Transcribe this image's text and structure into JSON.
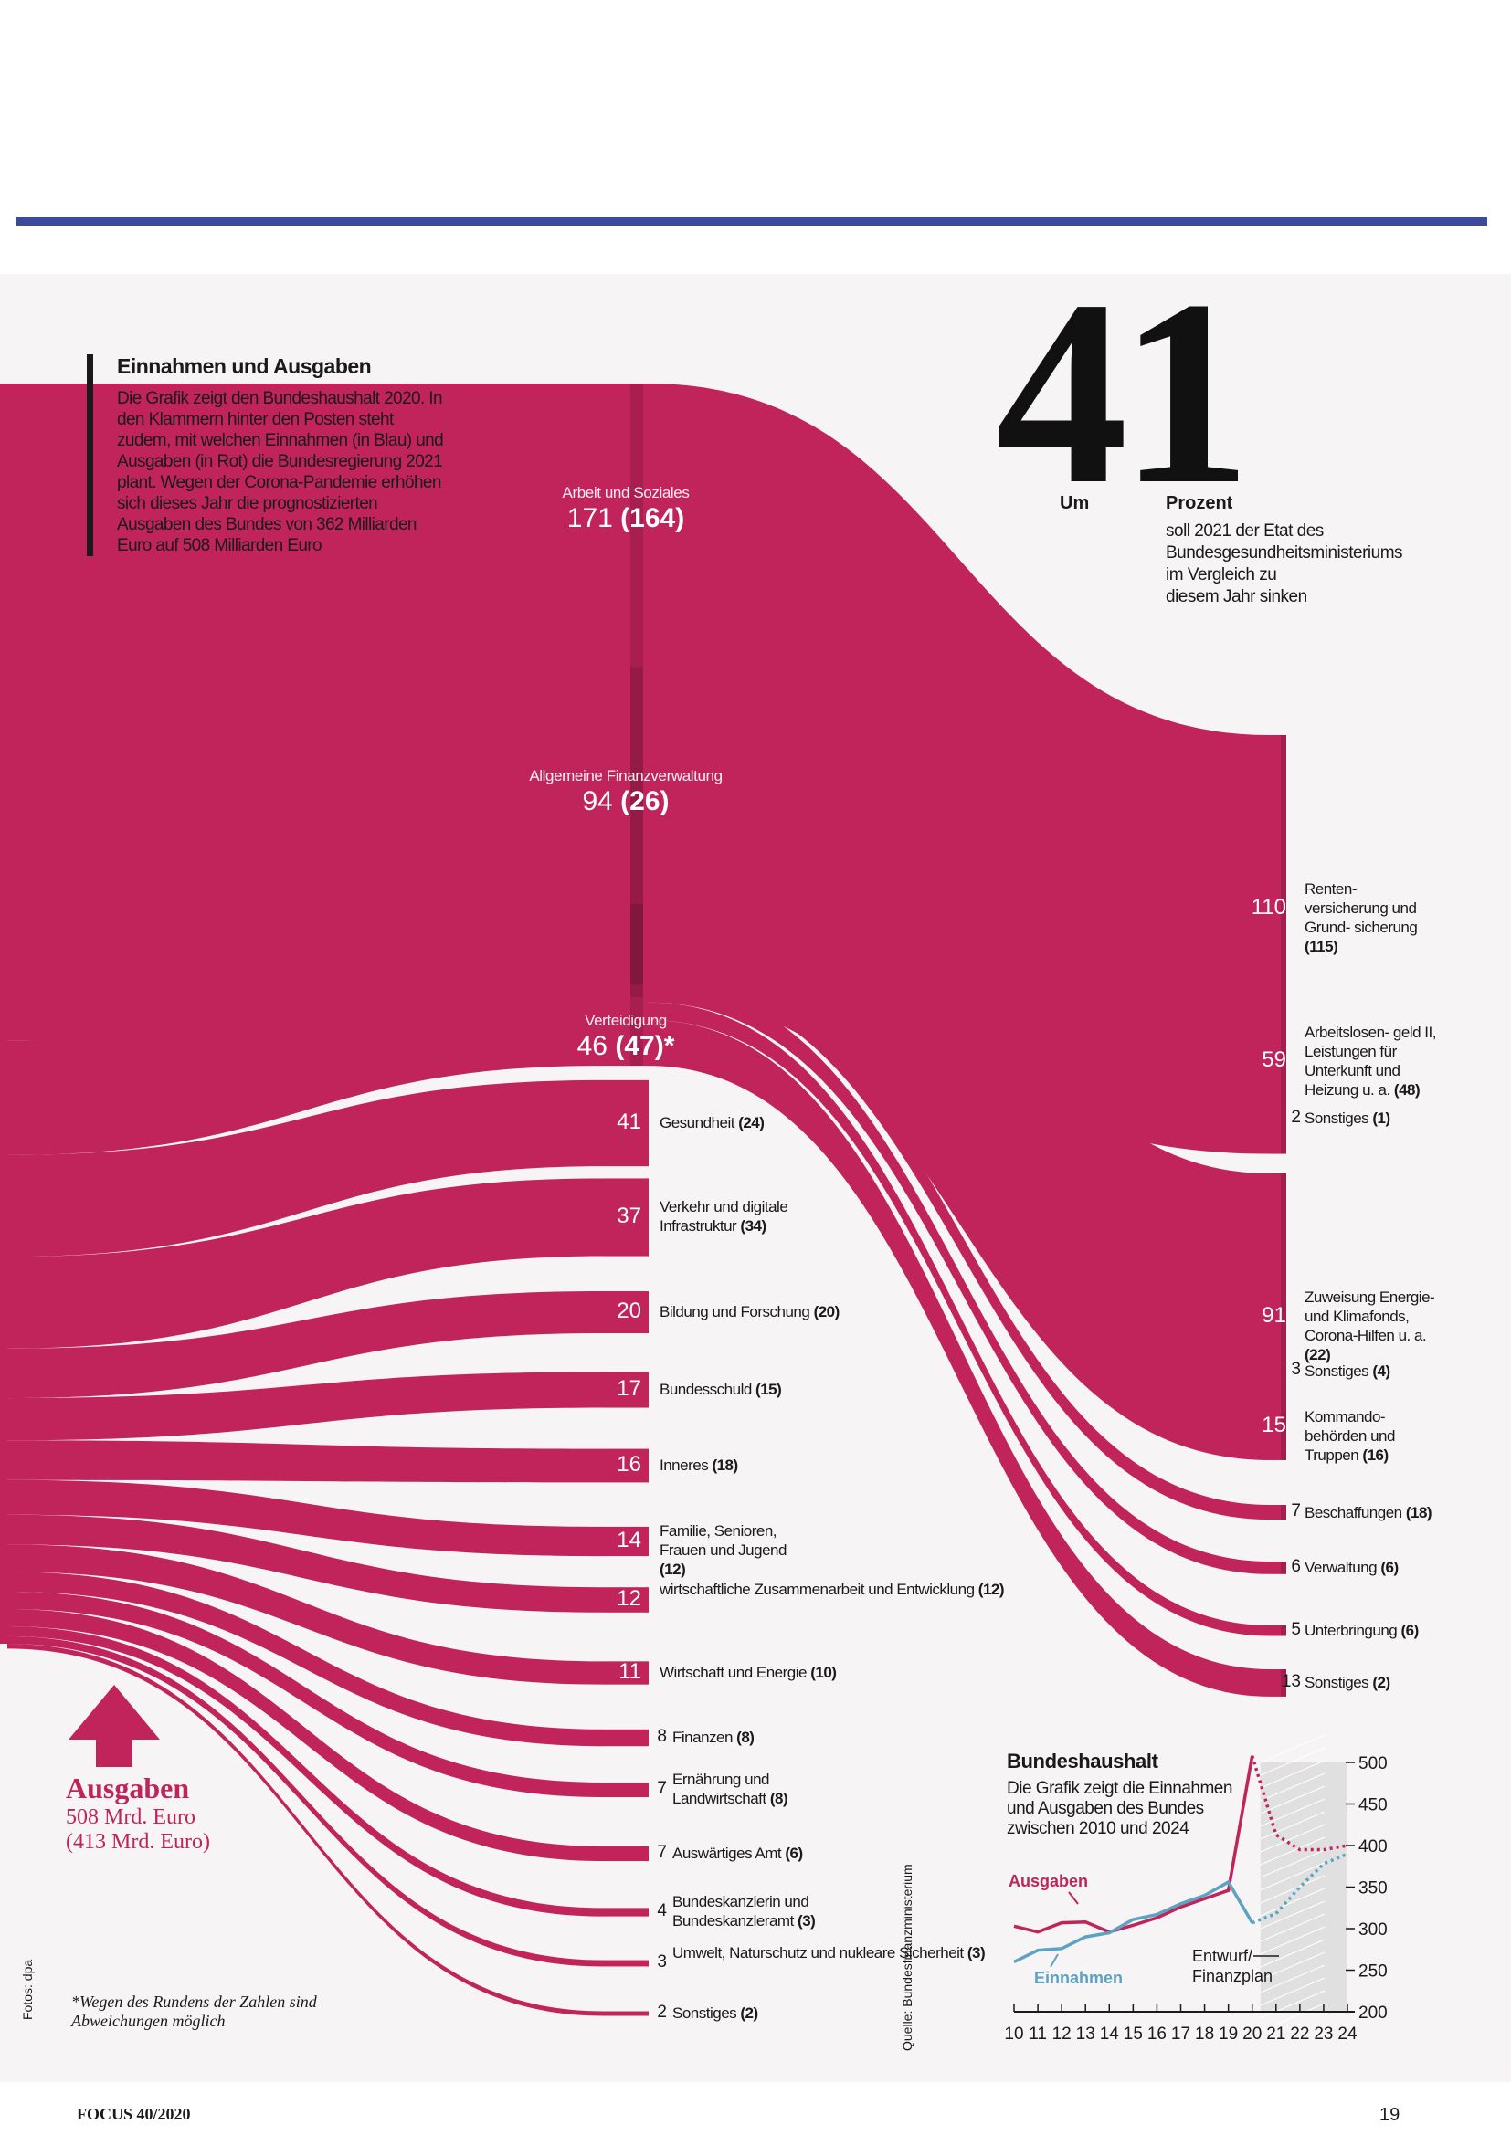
{
  "colors": {
    "ausgaben": "#c0245a",
    "einnahmen": "#5da2c0",
    "panel": "#f6f4f4",
    "rule": "#3b4a9a"
  },
  "intro": {
    "title": "Einnahmen und Ausgaben",
    "text": "Die Grafik zeigt den Bundeshaushalt 2020. In den Klammern hinter den Posten steht zudem, mit welchen Einnahmen (in Blau) und Ausgaben (in Rot) die Bundesregierung 2021 plant. Wegen der Corona-Pandemie erhöhen sich dieses Jahr die prognostizierten Ausgaben des Bundes von 362 Milliarden Euro auf 508 Milliarden Euro"
  },
  "highlight": {
    "number": "41",
    "um": "Um",
    "prozent": "Prozent",
    "text": "soll 2021 der Etat des Bundesgesundheitsministeriums im Vergleich zu diesem Jahr sinken"
  },
  "ausgaben_label": {
    "title": "Ausgaben",
    "total": "508 Mrd. Euro",
    "total_2021": "(413 Mrd. Euro)"
  },
  "footnote": "*Wegen des Rundens der Zahlen sind Abweichungen möglich",
  "credits": {
    "fotos": "Fotos: dpa",
    "quelle": "Quelle: Bundesfinanzministerium"
  },
  "footer": {
    "magazine": "FOCUS 40/2020",
    "page": "19"
  },
  "chart_data": [
    {
      "type": "sankey",
      "title": "Einnahmen und Ausgaben",
      "source": {
        "label": "Ausgaben",
        "value": 508,
        "value_2021": 413,
        "unit": "Mrd. Euro"
      },
      "categories": [
        {
          "name": "Arbeit und Soziales",
          "value": 171,
          "value_2021": "164",
          "label": "171 (164)"
        },
        {
          "name": "Allgemeine Finanzverwaltung",
          "value": 94,
          "value_2021": "26",
          "label": "94 (26)"
        },
        {
          "name": "Verteidigung",
          "value": 46,
          "value_2021": "47",
          "label": "46 (47)*"
        },
        {
          "name": "Gesundheit",
          "value": 41,
          "value_2021": "24",
          "text": "Gesundheit",
          "bracket": "(24)"
        },
        {
          "name": "Verkehr und digitale Infrastruktur",
          "value": 37,
          "value_2021": "34",
          "text": "Verkehr und digitale Infrastruktur",
          "bracket": "(34)"
        },
        {
          "name": "Bildung und Forschung",
          "value": 20,
          "value_2021": "20",
          "text": "Bildung und Forschung",
          "bracket": "(20)"
        },
        {
          "name": "Bundesschuld",
          "value": 17,
          "value_2021": "15",
          "text": "Bundesschuld",
          "bracket": "(15)"
        },
        {
          "name": "Inneres",
          "value": 16,
          "value_2021": "18",
          "text": "Inneres",
          "bracket": "(18)"
        },
        {
          "name": "Familie, Senioren, Frauen und Jugend",
          "value": 14,
          "value_2021": "12",
          "text": "Familie, Senioren, Frauen und Jugend",
          "bracket": "(12)"
        },
        {
          "name": "wirtschaftliche Zusammenarbeit und Entwicklung",
          "value": 12,
          "value_2021": "12",
          "text": "wirtschaftliche Zusammenarbeit und Entwicklung",
          "bracket": "(12)"
        },
        {
          "name": "Wirtschaft und Energie",
          "value": 11,
          "value_2021": "10",
          "text": "Wirtschaft und Energie",
          "bracket": "(10)"
        },
        {
          "name": "Finanzen",
          "value": 8,
          "value_2021": "8",
          "text": "Finanzen",
          "bracket": "(8)"
        },
        {
          "name": "Ernährung und Landwirtschaft",
          "value": 7,
          "value_2021": "8",
          "text": "Ernährung und Landwirtschaft",
          "bracket": "(8)"
        },
        {
          "name": "Auswärtiges Amt",
          "value": 7,
          "value_2021": "6",
          "text": "Auswärtiges Amt",
          "bracket": "(6)"
        },
        {
          "name": "Bundeskanzlerin und Bundeskanzleramt",
          "value": 4,
          "value_2021": "3",
          "text": "Bundeskanzlerin und Bundeskanzleramt",
          "bracket": "(3)"
        },
        {
          "name": "Umwelt, Naturschutz und nukleare Sicherheit",
          "value": 3,
          "value_2021": "3",
          "text": "Umwelt, Naturschutz und nukleare Sicherheit",
          "bracket": "(3)"
        },
        {
          "name": "Sonstiges",
          "value": 2,
          "value_2021": "2",
          "text": "Sonstiges",
          "bracket": "(2)"
        }
      ],
      "subitems": [
        {
          "parent": "Arbeit und Soziales",
          "name": "Renten-versicherung und Grund-sicherung",
          "value": 110,
          "value_2021": "115",
          "text": "Renten- versicherung und Grund- sicherung",
          "bracket": "(115)"
        },
        {
          "parent": "Arbeit und Soziales",
          "name": "Arbeitslosengeld II, Leistungen für Unterkunft und Heizung u. a.",
          "value": 59,
          "value_2021": "48",
          "text": "Arbeitslosen- geld II, Leistungen für Unterkunft und Heizung u. a.",
          "bracket": "(48)"
        },
        {
          "parent": "Arbeit und Soziales",
          "name": "Sonstiges",
          "value": 2,
          "value_2021": "1",
          "text": "Sonstiges",
          "bracket": "(1)"
        },
        {
          "parent": "Allgemeine Finanzverwaltung",
          "name": "Zuweisung Energie- und Klimafonds, Corona-Hilfen u. a.",
          "value": 91,
          "value_2021": "22",
          "text": "Zuweisung Energie- und Klimafonds, Corona-Hilfen u. a.",
          "bracket": "(22)"
        },
        {
          "parent": "Allgemeine Finanzverwaltung",
          "name": "Sonstiges",
          "value": 3,
          "value_2021": "4",
          "text": "Sonstiges",
          "bracket": "(4)"
        },
        {
          "parent": "Verteidigung",
          "name": "Kommandobehörden und Truppen",
          "value": 15,
          "value_2021": "16",
          "text": "Kommando- behörden und Truppen",
          "bracket": "(16)"
        },
        {
          "parent": "Verteidigung",
          "name": "Beschaffungen",
          "value": 7,
          "value_2021": "18",
          "text": "Beschaffungen",
          "bracket": "(18)"
        },
        {
          "parent": "Verteidigung",
          "name": "Verwaltung",
          "value": 6,
          "value_2021": "6",
          "text": "Verwaltung",
          "bracket": "(6)"
        },
        {
          "parent": "Verteidigung",
          "name": "Unterbringung",
          "value": 5,
          "value_2021": "6",
          "text": "Unterbringung",
          "bracket": "(6)"
        },
        {
          "parent": "Verteidigung",
          "name": "Sonstiges",
          "value": 13,
          "value_2021": "2",
          "text": "Sonstiges",
          "bracket": "(2)"
        }
      ]
    },
    {
      "type": "line",
      "title": "Bundeshaushalt",
      "subtitle": "Die Grafik zeigt die Einnahmen und Ausgaben des Bundes zwischen 2010 und 2024",
      "x": [
        "10",
        "11",
        "12",
        "13",
        "14",
        "15",
        "16",
        "17",
        "18",
        "19",
        "20",
        "21",
        "22",
        "23",
        "24"
      ],
      "series": [
        {
          "name": "Ausgaben",
          "values": [
            303,
            296,
            307,
            308,
            296,
            304,
            313,
            326,
            336,
            346,
            508,
            413,
            395,
            395,
            400
          ]
        },
        {
          "name": "Einnahmen",
          "values": [
            260,
            274,
            276,
            290,
            295,
            311,
            317,
            330,
            340,
            356,
            307,
            318,
            350,
            378,
            390
          ]
        }
      ],
      "forecast_label": "Entwurf/ Finanzplan",
      "forecast_from": "20",
      "yticks": [
        "500",
        "450",
        "400",
        "350",
        "300",
        "250",
        "200"
      ],
      "ylim": [
        200,
        500
      ]
    }
  ]
}
